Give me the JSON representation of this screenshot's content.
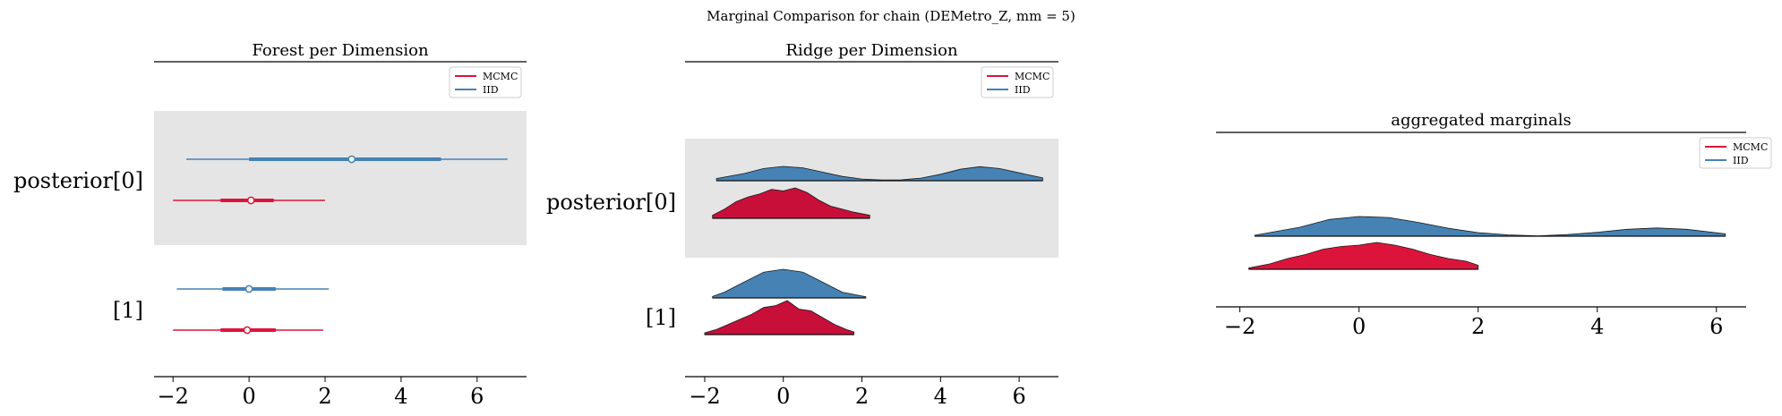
{
  "figure": {
    "suptitle": "Marginal Comparison for chain (DEMetro_Z, mm = 5)"
  },
  "colors": {
    "mcmc": "#dc143c",
    "mcmc_ridge": "#c70f3a",
    "iid": "#4682b4",
    "band": "#e5e5e5",
    "axis": "#000000"
  },
  "chart_data": [
    {
      "type": "forest",
      "title": "Forest per Dimension",
      "xlabel": "",
      "xlim": [
        -2.5,
        7.3
      ],
      "xticks": [
        -2,
        0,
        2,
        4,
        6
      ],
      "tick_labels": [
        "−2",
        "0",
        "2",
        "4",
        "6"
      ],
      "row_labels": [
        "posterior[0]",
        "[1]"
      ],
      "legend": {
        "placement": "top-right",
        "entries": [
          "MCMC",
          "IID"
        ]
      },
      "series": [
        {
          "name": "IID",
          "rows": [
            {
              "row": 0,
              "hdi94": [
                -1.65,
                6.8
              ],
              "hdi50": [
                0.0,
                5.05
              ],
              "center": 2.7
            },
            {
              "row": 1,
              "hdi94": [
                -1.9,
                2.1
              ],
              "hdi50": [
                -0.7,
                0.7
              ],
              "center": 0.0
            }
          ]
        },
        {
          "name": "MCMC",
          "rows": [
            {
              "row": 0,
              "hdi94": [
                -2.0,
                2.0
              ],
              "hdi50": [
                -0.75,
                0.65
              ],
              "center": 0.05
            },
            {
              "row": 1,
              "hdi94": [
                -2.0,
                1.95
              ],
              "hdi50": [
                -0.75,
                0.7
              ],
              "center": -0.05
            }
          ]
        }
      ]
    },
    {
      "type": "ridge",
      "title": "Ridge per Dimension",
      "xlabel": "",
      "xlim": [
        -2.5,
        7.0
      ],
      "xticks": [
        -2,
        0,
        2,
        4,
        6
      ],
      "tick_labels": [
        "−2",
        "0",
        "2",
        "4",
        "6"
      ],
      "row_labels": [
        "posterior[0]",
        "[1]"
      ],
      "legend": {
        "placement": "top-right",
        "entries": [
          "MCMC",
          "IID"
        ]
      },
      "series": [
        {
          "name": "IID",
          "rows": [
            {
              "row": 0,
              "x": [
                -1.7,
                -1.0,
                -0.5,
                0.0,
                0.5,
                1.0,
                1.5,
                2.0,
                2.5,
                3.0,
                3.5,
                4.0,
                4.5,
                5.0,
                5.5,
                6.0,
                6.6
              ],
              "density": [
                0.15,
                0.5,
                0.85,
                1.0,
                0.9,
                0.6,
                0.3,
                0.12,
                0.05,
                0.06,
                0.18,
                0.45,
                0.8,
                0.98,
                0.85,
                0.55,
                0.2
              ]
            },
            {
              "row": 1,
              "x": [
                -1.8,
                -1.5,
                -1.0,
                -0.5,
                0.0,
                0.5,
                1.0,
                1.5,
                2.1
              ],
              "density": [
                0.05,
                0.2,
                0.55,
                0.9,
                1.0,
                0.9,
                0.55,
                0.2,
                0.04
              ]
            }
          ]
        },
        {
          "name": "MCMC",
          "rows": [
            {
              "row": 0,
              "x": [
                -1.8,
                -1.5,
                -1.2,
                -0.9,
                -0.6,
                -0.3,
                0.0,
                0.3,
                0.6,
                0.9,
                1.2,
                1.5,
                1.8,
                2.2
              ],
              "density": [
                0.1,
                0.3,
                0.55,
                0.7,
                0.8,
                0.95,
                0.9,
                1.0,
                0.85,
                0.6,
                0.4,
                0.3,
                0.2,
                0.1
              ]
            },
            {
              "row": 1,
              "x": [
                -2.0,
                -1.7,
                -1.4,
                -1.1,
                -0.8,
                -0.5,
                -0.2,
                0.1,
                0.4,
                0.7,
                1.0,
                1.3,
                1.6,
                1.8
              ],
              "density": [
                0.05,
                0.15,
                0.3,
                0.45,
                0.6,
                0.8,
                0.85,
                1.0,
                0.75,
                0.7,
                0.5,
                0.3,
                0.15,
                0.08
              ]
            }
          ]
        }
      ]
    },
    {
      "type": "ridge",
      "title": "aggregated marginals",
      "xlabel": "",
      "xlim": [
        -2.4,
        6.5
      ],
      "xticks": [
        -2,
        0,
        2,
        4,
        6
      ],
      "tick_labels": [
        "−2",
        "0",
        "2",
        "4",
        "6"
      ],
      "legend": {
        "placement": "top-right",
        "entries": [
          "MCMC",
          "IID"
        ]
      },
      "series": [
        {
          "name": "IID",
          "x": [
            -1.75,
            -1.0,
            -0.5,
            0.0,
            0.5,
            1.0,
            1.5,
            2.0,
            2.5,
            3.0,
            3.5,
            4.0,
            4.5,
            5.0,
            5.5,
            6.15
          ],
          "density": [
            0.05,
            0.45,
            0.85,
            1.0,
            0.95,
            0.7,
            0.4,
            0.18,
            0.07,
            0.02,
            0.08,
            0.2,
            0.35,
            0.42,
            0.35,
            0.12
          ]
        },
        {
          "name": "MCMC",
          "x": [
            -1.85,
            -1.5,
            -1.2,
            -0.9,
            -0.6,
            -0.3,
            0.0,
            0.3,
            0.6,
            0.9,
            1.2,
            1.5,
            1.8,
            2.0
          ],
          "density": [
            0.05,
            0.2,
            0.4,
            0.55,
            0.75,
            0.85,
            0.9,
            1.0,
            0.9,
            0.75,
            0.55,
            0.4,
            0.3,
            0.15
          ]
        }
      ]
    }
  ]
}
